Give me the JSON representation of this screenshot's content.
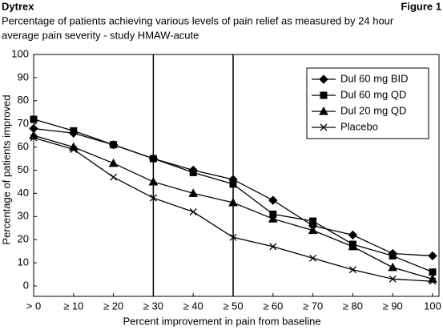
{
  "chart_data": {
    "type": "line",
    "header_left": "Dytrex",
    "header_right": "Figure 1",
    "title": "Percentage of patients achieving various levels of pain relief as measured by 24 hour",
    "subtitle": "average pain severity - study HMAW-acute",
    "x_label": "Percent improvement in pain from baseline",
    "y_label": "Percentage of patients improved",
    "categories": [
      "> 0",
      "≥ 10",
      "≥ 20",
      "≥ 30",
      "≥ 40",
      "≥ 50",
      "≥ 60",
      "≥ 70",
      "≥ 80",
      "≥ 90",
      "100"
    ],
    "ylim": [
      0,
      100
    ],
    "yticks": [
      0,
      10,
      20,
      30,
      40,
      50,
      60,
      70,
      80,
      90,
      100
    ],
    "legend": "upper right",
    "series": [
      {
        "name": "Dul 60 mg BID",
        "color": "#000000",
        "marker": "diamond",
        "values": [
          68,
          66,
          61,
          55,
          50,
          46,
          37,
          26,
          22,
          14,
          13
        ]
      },
      {
        "name": "Dul 60 mg QD",
        "color": "#000000",
        "marker": "square",
        "values": [
          72,
          67,
          61,
          55,
          49,
          44,
          31,
          28,
          18,
          13,
          6
        ]
      },
      {
        "name": "Dul 20 mg QD",
        "color": "#000000",
        "marker": "triangle",
        "values": [
          65,
          60,
          53,
          45,
          40,
          36,
          29,
          24,
          17,
          8,
          3
        ]
      },
      {
        "name": "Placebo",
        "color": "#000000",
        "marker": "x",
        "values": [
          64,
          59,
          47,
          38,
          32,
          21,
          17,
          12,
          7,
          3,
          2
        ]
      }
    ]
  }
}
